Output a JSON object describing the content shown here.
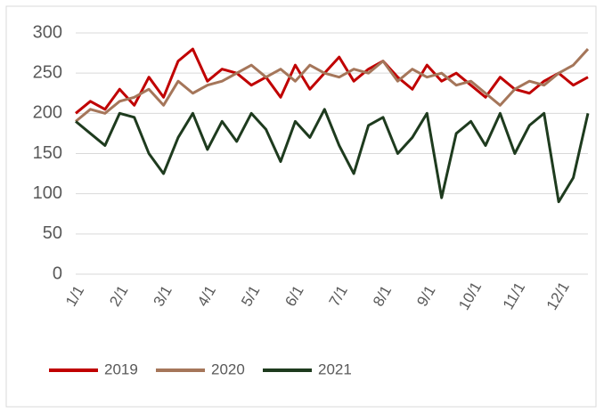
{
  "chart_data": {
    "type": "line",
    "categories": [
      "1/1",
      null,
      null,
      "2/1",
      null,
      null,
      "3/1",
      null,
      null,
      "4/1",
      null,
      null,
      "5/1",
      null,
      null,
      "6/1",
      null,
      null,
      "7/1",
      null,
      null,
      "8/1",
      null,
      null,
      "9/1",
      null,
      null,
      "10/1",
      null,
      null,
      "11/1",
      null,
      null,
      "12/1",
      null,
      null
    ],
    "series": [
      {
        "name": "2019",
        "color": "#c00000",
        "values": [
          200,
          215,
          205,
          230,
          210,
          245,
          220,
          265,
          280,
          240,
          255,
          250,
          235,
          245,
          220,
          260,
          230,
          250,
          270,
          240,
          255,
          265,
          245,
          230,
          260,
          240,
          250,
          235,
          220,
          245,
          230,
          225,
          240,
          250,
          235,
          245
        ]
      },
      {
        "name": "2020",
        "color": "#a5765a",
        "values": [
          190,
          205,
          200,
          215,
          220,
          230,
          210,
          240,
          225,
          235,
          240,
          250,
          260,
          245,
          255,
          240,
          260,
          250,
          245,
          255,
          250,
          265,
          240,
          255,
          245,
          250,
          235,
          240,
          225,
          210,
          230,
          240,
          235,
          250,
          260,
          280
        ]
      },
      {
        "name": "2021",
        "color": "#1e3b1e",
        "values": [
          190,
          175,
          160,
          200,
          195,
          150,
          125,
          170,
          200,
          155,
          190,
          165,
          200,
          180,
          140,
          190,
          170,
          205,
          160,
          125,
          185,
          195,
          150,
          170,
          200,
          95,
          175,
          190,
          160,
          200,
          150,
          185,
          200,
          90,
          120,
          200
        ]
      }
    ],
    "ylim": [
      0,
      300
    ],
    "yticks": [
      0,
      50,
      100,
      150,
      200,
      250,
      300
    ],
    "grid": true,
    "legend": "bottom"
  }
}
